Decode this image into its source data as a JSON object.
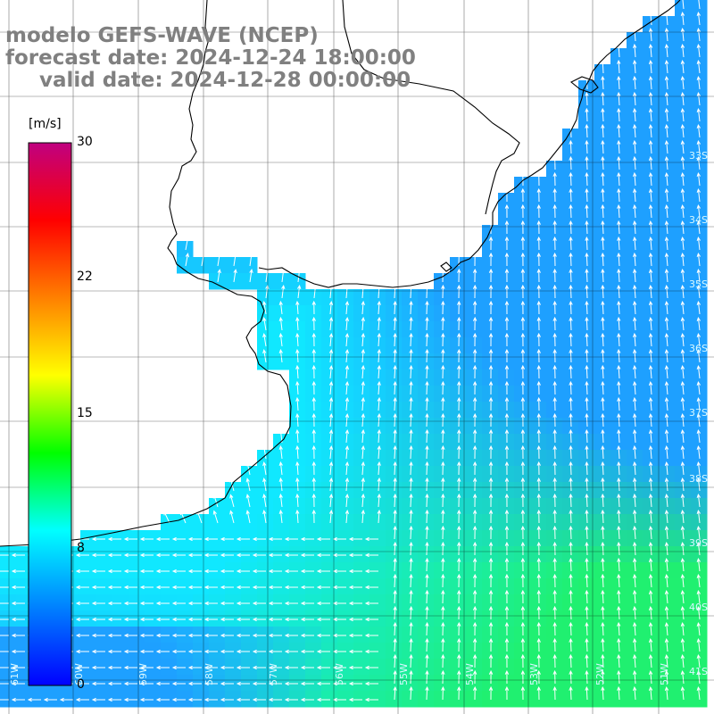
{
  "title": {
    "line1": "modelo GEFS-WAVE (NCEP)",
    "line2": "forecast date: 2024-12-24 18:00:00",
    "line3": "valid date: 2024-12-28 00:00:00"
  },
  "colorbar": {
    "unit": "[m/s]",
    "min": 0,
    "max": 30,
    "ticks": [
      "30",
      "22",
      "15",
      "8",
      "0"
    ],
    "tick_values": [
      30,
      22,
      15,
      8,
      0
    ],
    "stops": [
      "#0000ff",
      "#0080ff",
      "#00ffff",
      "#00ff00",
      "#ffff00",
      "#ff8000",
      "#ff0000",
      "#c00080"
    ]
  },
  "lat_labels": [
    "33S",
    "34S",
    "35S",
    "36S",
    "37S",
    "38S",
    "39S",
    "40S",
    "41S"
  ],
  "lon_labels": [
    "61W",
    "60W",
    "59W",
    "58W",
    "57W",
    "56W",
    "55W",
    "54W",
    "53W",
    "52W",
    "51W"
  ],
  "field": {
    "variable": "wind speed and direction",
    "palette_water_colors": {
      "blue": "#1ea0ff",
      "cyan": "#10e8ff",
      "green": "#20f070"
    },
    "prevailing_direction": "from south"
  }
}
